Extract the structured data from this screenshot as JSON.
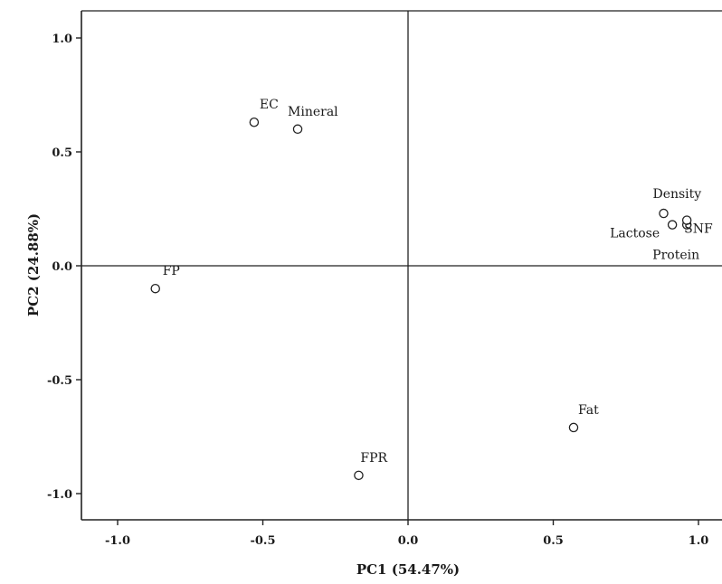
{
  "chart_data": {
    "type": "scatter",
    "xlabel": "PC1 (54.47%)",
    "ylabel": "PC2 (24.88%)",
    "xlim": [
      -1.1,
      1.1
    ],
    "ylim": [
      -1.1,
      1.1
    ],
    "x_ticks": [
      {
        "value": -1.0,
        "label": "-1.0"
      },
      {
        "value": -0.5,
        "label": "-0.5"
      },
      {
        "value": 0.0,
        "label": "0.0"
      },
      {
        "value": 0.5,
        "label": "0.5"
      },
      {
        "value": 1.0,
        "label": "1.0"
      }
    ],
    "y_ticks": [
      {
        "value": 1.0,
        "label": "1.0"
      },
      {
        "value": 0.5,
        "label": "0.5"
      },
      {
        "value": 0.0,
        "label": "0.0"
      },
      {
        "value": -0.5,
        "label": "-0.5"
      },
      {
        "value": -1.0,
        "label": "-1.0"
      }
    ],
    "reference_lines": {
      "x": 0,
      "y": 0
    },
    "grid": false,
    "points": [
      {
        "label": "EC",
        "x": -0.53,
        "y": 0.63
      },
      {
        "label": "Mineral",
        "x": -0.38,
        "y": 0.6
      },
      {
        "label": "FP",
        "x": -0.87,
        "y": -0.1
      },
      {
        "label": "FPR",
        "x": -0.17,
        "y": -0.92
      },
      {
        "label": "Fat",
        "x": 0.57,
        "y": -0.71
      },
      {
        "label": "Density",
        "x": 0.88,
        "y": 0.23
      },
      {
        "label": "Lactose",
        "x": 0.91,
        "y": 0.18
      },
      {
        "label": "SNF",
        "x": 0.96,
        "y": 0.18
      },
      {
        "label": "Protein",
        "x": 0.96,
        "y": 0.2
      }
    ]
  }
}
